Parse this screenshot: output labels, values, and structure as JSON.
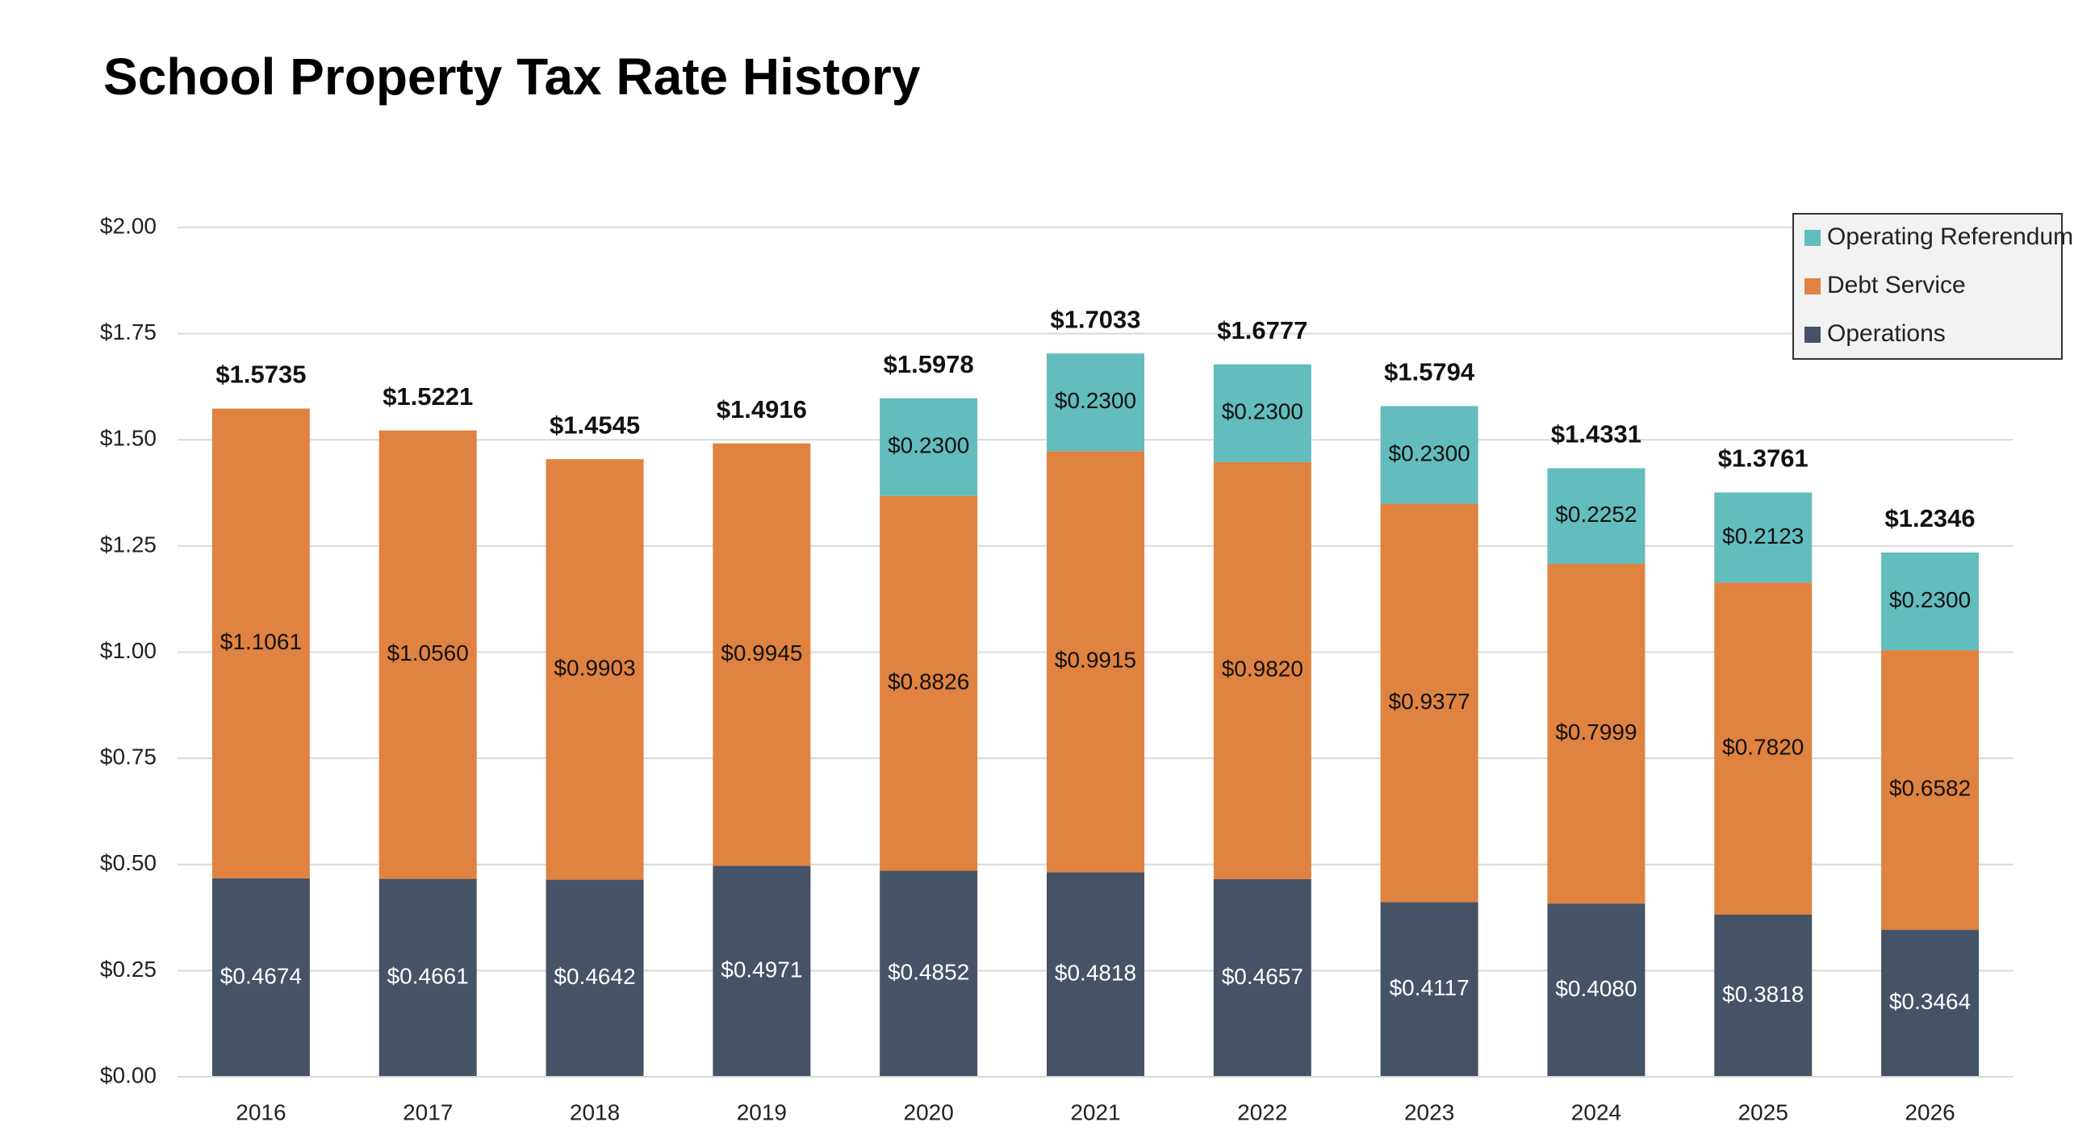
{
  "chart_data": {
    "type": "stacked_bar",
    "title": "School Property Tax Rate History",
    "categories": [
      "2016",
      "2017",
      "2018",
      "2019",
      "2020",
      "2021",
      "2022",
      "2023",
      "2024",
      "2025",
      "2026"
    ],
    "series": [
      {
        "name": "Operations",
        "color": "#465366",
        "values": [
          0.4674,
          0.4661,
          0.4642,
          0.4971,
          0.4852,
          0.4818,
          0.4657,
          0.4117,
          0.408,
          0.3818,
          0.3464
        ],
        "value_labels": [
          "$0.4674",
          "$0.4661",
          "$0.4642",
          "$0.4971",
          "$0.4852",
          "$0.4818",
          "$0.4657",
          "$0.4117",
          "$0.4080",
          "$0.3818",
          "$0.3464"
        ]
      },
      {
        "name": "Debt Service",
        "color": "#e08240",
        "values": [
          1.1061,
          1.056,
          0.9903,
          0.9945,
          0.8826,
          0.9915,
          0.982,
          0.9377,
          0.7999,
          0.782,
          0.6582
        ],
        "value_labels": [
          "$1.1061",
          "$1.0560",
          "$0.9903",
          "$0.9945",
          "$0.8826",
          "$0.9915",
          "$0.9820",
          "$0.9377",
          "$0.7999",
          "$0.7820",
          "$0.6582"
        ]
      },
      {
        "name": "Operating Referendum",
        "color": "#63bcbd",
        "values": [
          null,
          null,
          null,
          null,
          0.23,
          0.23,
          0.23,
          0.23,
          0.2252,
          0.2123,
          0.23
        ],
        "value_labels": [
          null,
          null,
          null,
          null,
          "$0.2300",
          "$0.2300",
          "$0.2300",
          "$0.2300",
          "$0.2252",
          "$0.2123",
          "$0.2300"
        ]
      }
    ],
    "totals": [
      1.5735,
      1.5221,
      1.4545,
      1.4916,
      1.5978,
      1.7033,
      1.6777,
      1.5794,
      1.4331,
      1.3761,
      1.2346
    ],
    "total_labels": [
      "$1.5735",
      "$1.5221",
      "$1.4545",
      "$1.4916",
      "$1.5978",
      "$1.7033",
      "$1.6777",
      "$1.5794",
      "$1.4331",
      "$1.3761",
      "$1.2346"
    ],
    "ylim": [
      0,
      2
    ],
    "yticks": [
      {
        "value": 0,
        "label": "$0.00"
      },
      {
        "value": 0.25,
        "label": "$0.25"
      },
      {
        "value": 0.5,
        "label": "$0.50"
      },
      {
        "value": 0.75,
        "label": "$0.75"
      },
      {
        "value": 1,
        "label": "$1.00"
      },
      {
        "value": 1.25,
        "label": "$1.25"
      },
      {
        "value": 1.5,
        "label": "$1.50"
      },
      {
        "value": 1.75,
        "label": "$1.75"
      },
      {
        "value": 2,
        "label": "$2.00"
      }
    ],
    "grid": true,
    "legend": "top-right"
  }
}
